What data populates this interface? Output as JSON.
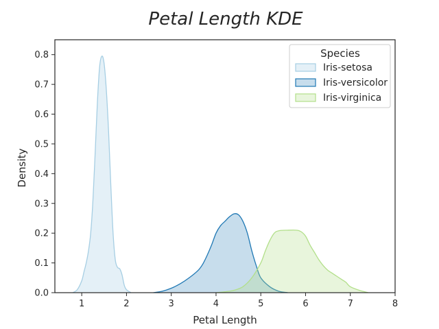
{
  "chart_data": {
    "type": "area",
    "title": "Petal Length KDE",
    "xlabel": "Petal Length",
    "ylabel": "Density",
    "xlim": [
      0.4,
      8
    ],
    "ylim": [
      0,
      0.85
    ],
    "xticks": [
      1,
      2,
      3,
      4,
      5,
      6,
      7,
      8
    ],
    "yticks": [
      0.0,
      0.1,
      0.2,
      0.3,
      0.4,
      0.5,
      0.6,
      0.7,
      0.8
    ],
    "grid": false,
    "legend": {
      "title": "Species",
      "placement": "top-right"
    },
    "series": [
      {
        "name": "Iris-setosa",
        "color": "#a6cee3",
        "fill_opacity": 0.3,
        "points": [
          [
            0.8,
            0
          ],
          [
            0.9,
            0.01
          ],
          [
            1.0,
            0.04
          ],
          [
            1.05,
            0.07
          ],
          [
            1.1,
            0.1
          ],
          [
            1.15,
            0.14
          ],
          [
            1.2,
            0.2
          ],
          [
            1.25,
            0.31
          ],
          [
            1.3,
            0.47
          ],
          [
            1.35,
            0.64
          ],
          [
            1.4,
            0.76
          ],
          [
            1.45,
            0.795
          ],
          [
            1.5,
            0.77
          ],
          [
            1.55,
            0.68
          ],
          [
            1.6,
            0.54
          ],
          [
            1.65,
            0.36
          ],
          [
            1.7,
            0.2
          ],
          [
            1.75,
            0.11
          ],
          [
            1.8,
            0.085
          ],
          [
            1.85,
            0.08
          ],
          [
            1.9,
            0.06
          ],
          [
            1.95,
            0.025
          ],
          [
            2.0,
            0.01
          ],
          [
            2.1,
            0
          ]
        ]
      },
      {
        "name": "Iris-versicolor",
        "color": "#1f78b4",
        "fill_opacity": 0.25,
        "points": [
          [
            2.6,
            0
          ],
          [
            2.8,
            0.005
          ],
          [
            3.0,
            0.015
          ],
          [
            3.2,
            0.03
          ],
          [
            3.4,
            0.05
          ],
          [
            3.6,
            0.075
          ],
          [
            3.7,
            0.095
          ],
          [
            3.8,
            0.125
          ],
          [
            3.9,
            0.16
          ],
          [
            4.0,
            0.2
          ],
          [
            4.1,
            0.225
          ],
          [
            4.2,
            0.24
          ],
          [
            4.3,
            0.255
          ],
          [
            4.4,
            0.265
          ],
          [
            4.5,
            0.262
          ],
          [
            4.6,
            0.24
          ],
          [
            4.7,
            0.2
          ],
          [
            4.8,
            0.14
          ],
          [
            4.9,
            0.09
          ],
          [
            5.0,
            0.05
          ],
          [
            5.2,
            0.02
          ],
          [
            5.4,
            0.005
          ],
          [
            5.6,
            0
          ]
        ]
      },
      {
        "name": "Iris-virginica",
        "color": "#b2df8a",
        "fill_opacity": 0.3,
        "points": [
          [
            4.0,
            0
          ],
          [
            4.2,
            0.003
          ],
          [
            4.4,
            0.008
          ],
          [
            4.6,
            0.02
          ],
          [
            4.8,
            0.05
          ],
          [
            5.0,
            0.1
          ],
          [
            5.1,
            0.14
          ],
          [
            5.2,
            0.175
          ],
          [
            5.3,
            0.2
          ],
          [
            5.4,
            0.208
          ],
          [
            5.6,
            0.21
          ],
          [
            5.8,
            0.21
          ],
          [
            5.9,
            0.205
          ],
          [
            6.0,
            0.19
          ],
          [
            6.1,
            0.16
          ],
          [
            6.2,
            0.135
          ],
          [
            6.3,
            0.11
          ],
          [
            6.4,
            0.09
          ],
          [
            6.5,
            0.075
          ],
          [
            6.6,
            0.065
          ],
          [
            6.7,
            0.055
          ],
          [
            6.8,
            0.045
          ],
          [
            6.9,
            0.035
          ],
          [
            7.0,
            0.02
          ],
          [
            7.2,
            0.008
          ],
          [
            7.4,
            0
          ]
        ]
      }
    ]
  }
}
